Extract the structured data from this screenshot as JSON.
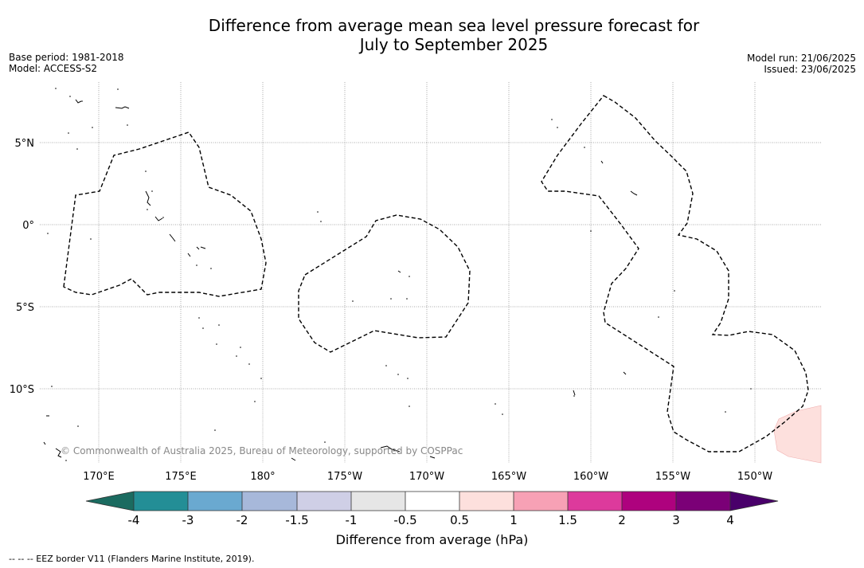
{
  "title_line1": "Difference from average mean sea level pressure forecast for",
  "title_line2": "July to September 2025",
  "meta_left": [
    "Base period: 1981-2018",
    "Model: ACCESS-S2"
  ],
  "meta_right": [
    "Model run: 21/06/2025",
    "Issued: 23/06/2025"
  ],
  "map": {
    "lon_ticks": [
      "170°E",
      "175°E",
      "180°",
      "175°W",
      "170°W",
      "165°W",
      "160°W",
      "155°W",
      "150°W"
    ],
    "lat_ticks": [
      "5°N",
      "0°",
      "5°S",
      "10°S"
    ],
    "copyright": "© Commonwealth of Australia 2025, Bureau of Meteorology, supported by COSPPac",
    "anomaly_region_color": "#fde0dd"
  },
  "colorbar": {
    "ticks": [
      "-4",
      "-3",
      "-2",
      "-1.5",
      "-1",
      "-0.5",
      "0.5",
      "1",
      "1.5",
      "2",
      "3",
      "4"
    ],
    "colors": [
      "#1b6b60",
      "#238e96",
      "#6aa9d0",
      "#a7b8da",
      "#cfcfe6",
      "#e6e6e6",
      "#ffffff",
      "#fde0dd",
      "#f7a1b5",
      "#dd3a9c",
      "#ae027e",
      "#7b0077",
      "#49006a"
    ],
    "label": "Difference from average (hPa)"
  },
  "footnote": "--  --  -- EEZ border V11 (Flanders Marine Institute, 2019)."
}
